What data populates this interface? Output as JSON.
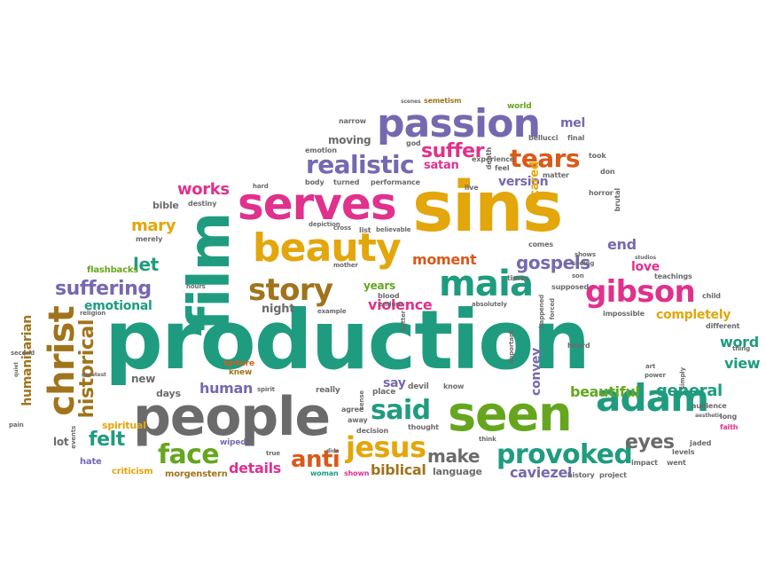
{
  "palette": {
    "teal": "#1f9c7f",
    "gray": "#6b6b6b",
    "purple": "#7668b0",
    "pink": "#e0318c",
    "gold": "#e3a60b",
    "green": "#66a61e",
    "brown": "#a0741c",
    "orange": "#d95a19"
  },
  "words": [
    {
      "text": "production",
      "color": "#1f9c7f"
    },
    {
      "text": "sins",
      "color": "#e3a60b"
    },
    {
      "text": "people",
      "color": "#6b6b6b"
    },
    {
      "text": "seen",
      "color": "#66a61e"
    },
    {
      "text": "film",
      "color": "#1f9c7f"
    },
    {
      "text": "serves",
      "color": "#e0318c"
    },
    {
      "text": "beauty",
      "color": "#e3a60b"
    },
    {
      "text": "passion",
      "color": "#7668b0"
    },
    {
      "text": "christ",
      "color": "#a0741c"
    },
    {
      "text": "adam",
      "color": "#1f9c7f"
    },
    {
      "text": "maia",
      "color": "#1f9c7f"
    },
    {
      "text": "gibson",
      "color": "#e0318c"
    },
    {
      "text": "story",
      "color": "#a0741c"
    },
    {
      "text": "provoked",
      "color": "#1f9c7f"
    },
    {
      "text": "jesus",
      "color": "#e3a60b"
    },
    {
      "text": "said",
      "color": "#1f9c7f"
    },
    {
      "text": "realistic",
      "color": "#7668b0"
    },
    {
      "text": "face",
      "color": "#66a61e"
    },
    {
      "text": "anti",
      "color": "#d95a19"
    },
    {
      "text": "tears",
      "color": "#d95a19"
    },
    {
      "text": "suffering",
      "color": "#7668b0"
    },
    {
      "text": "historical",
      "color": "#a0741c"
    },
    {
      "text": "felt",
      "color": "#1f9c7f"
    },
    {
      "text": "suffer",
      "color": "#e0318c"
    },
    {
      "text": "eyes",
      "color": "#6b6b6b"
    },
    {
      "text": "gospels",
      "color": "#7668b0"
    },
    {
      "text": "let",
      "color": "#1f9c7f"
    },
    {
      "text": "make",
      "color": "#6b6b6b"
    },
    {
      "text": "general",
      "color": "#1f9c7f"
    },
    {
      "text": "beautiful",
      "color": "#66a61e"
    },
    {
      "text": "violence",
      "color": "#e0318c"
    },
    {
      "text": "works",
      "color": "#e0318c"
    },
    {
      "text": "mary",
      "color": "#e3a60b"
    },
    {
      "text": "moment",
      "color": "#d95a19"
    },
    {
      "text": "caviezel",
      "color": "#7668b0"
    },
    {
      "text": "biblical",
      "color": "#a0741c"
    },
    {
      "text": "details",
      "color": "#e0318c"
    },
    {
      "text": "end",
      "color": "#7668b0"
    },
    {
      "text": "human",
      "color": "#7668b0"
    },
    {
      "text": "word",
      "color": "#1f9c7f"
    },
    {
      "text": "view",
      "color": "#1f9c7f"
    },
    {
      "text": "completely",
      "color": "#e3a60b"
    },
    {
      "text": "love",
      "color": "#e0318c"
    },
    {
      "text": "version",
      "color": "#7668b0"
    },
    {
      "text": "emotional",
      "color": "#1f9c7f"
    },
    {
      "text": "humanitarian",
      "color": "#a0741c"
    },
    {
      "text": "scared",
      "color": "#e3a60b"
    },
    {
      "text": "satan",
      "color": "#e0318c"
    },
    {
      "text": "convey",
      "color": "#7668b0"
    },
    {
      "text": "night",
      "color": "#6b6b6b"
    },
    {
      "text": "years",
      "color": "#66a61e"
    },
    {
      "text": "mel",
      "color": "#7668b0"
    },
    {
      "text": "moving",
      "color": "#6b6b6b"
    },
    {
      "text": "say",
      "color": "#7668b0"
    },
    {
      "text": "lot",
      "color": "#6b6b6b"
    },
    {
      "text": "bible",
      "color": "#6b6b6b"
    },
    {
      "text": "new",
      "color": "#6b6b6b"
    },
    {
      "text": "days",
      "color": "#6b6b6b"
    },
    {
      "text": "language",
      "color": "#6b6b6b"
    },
    {
      "text": "flashbacks",
      "color": "#66a61e"
    },
    {
      "text": "spiritual",
      "color": "#e3a60b"
    },
    {
      "text": "hate",
      "color": "#7668b0"
    },
    {
      "text": "criticism",
      "color": "#e3a60b"
    },
    {
      "text": "morgenstern",
      "color": "#a0741c"
    },
    {
      "text": "torture",
      "color": "#d95a19"
    },
    {
      "text": "knew",
      "color": "#a0741c"
    },
    {
      "text": "wiped",
      "color": "#7668b0"
    },
    {
      "text": "really",
      "color": "#6b6b6b"
    },
    {
      "text": "place",
      "color": "#6b6b6b"
    },
    {
      "text": "devil",
      "color": "#6b6b6b"
    },
    {
      "text": "know",
      "color": "#6b6b6b"
    },
    {
      "text": "agree",
      "color": "#6b6b6b"
    },
    {
      "text": "away",
      "color": "#6b6b6b"
    },
    {
      "text": "decision",
      "color": "#6b6b6b"
    },
    {
      "text": "thought",
      "color": "#6b6b6b"
    },
    {
      "text": "shown",
      "color": "#e0318c"
    },
    {
      "text": "woman",
      "color": "#1f9c7f"
    },
    {
      "text": "history",
      "color": "#6b6b6b"
    },
    {
      "text": "project",
      "color": "#6b6b6b"
    },
    {
      "text": "impact",
      "color": "#6b6b6b"
    },
    {
      "text": "went",
      "color": "#6b6b6b"
    },
    {
      "text": "levels",
      "color": "#6b6b6b"
    },
    {
      "text": "jaded",
      "color": "#6b6b6b"
    },
    {
      "text": "audience",
      "color": "#6b6b6b"
    },
    {
      "text": "long",
      "color": "#6b6b6b"
    },
    {
      "text": "faith",
      "color": "#e0318c"
    },
    {
      "text": "child",
      "color": "#6b6b6b"
    },
    {
      "text": "different",
      "color": "#6b6b6b"
    },
    {
      "text": "heard",
      "color": "#6b6b6b"
    },
    {
      "text": "impossible",
      "color": "#6b6b6b"
    },
    {
      "text": "teachings",
      "color": "#6b6b6b"
    },
    {
      "text": "bellucci",
      "color": "#6b6b6b"
    },
    {
      "text": "final",
      "color": "#6b6b6b"
    },
    {
      "text": "took",
      "color": "#6b6b6b"
    },
    {
      "text": "don",
      "color": "#6b6b6b"
    },
    {
      "text": "world",
      "color": "#66a61e"
    },
    {
      "text": "semetism",
      "color": "#a0741c"
    },
    {
      "text": "narrow",
      "color": "#6b6b6b"
    },
    {
      "text": "emotion",
      "color": "#6b6b6b"
    },
    {
      "text": "god",
      "color": "#6b6b6b"
    },
    {
      "text": "body",
      "color": "#6b6b6b"
    },
    {
      "text": "turned",
      "color": "#6b6b6b"
    },
    {
      "text": "performance",
      "color": "#6b6b6b"
    },
    {
      "text": "live",
      "color": "#6b6b6b"
    },
    {
      "text": "horror",
      "color": "#6b6b6b"
    },
    {
      "text": "matter",
      "color": "#6b6b6b"
    },
    {
      "text": "feel",
      "color": "#6b6b6b"
    },
    {
      "text": "death",
      "color": "#6b6b6b"
    },
    {
      "text": "experience",
      "color": "#6b6b6b"
    },
    {
      "text": "brutal",
      "color": "#6b6b6b"
    },
    {
      "text": "destiny",
      "color": "#6b6b6b"
    },
    {
      "text": "merely",
      "color": "#6b6b6b"
    },
    {
      "text": "hard",
      "color": "#6b6b6b"
    },
    {
      "text": "depiction",
      "color": "#6b6b6b"
    },
    {
      "text": "cross",
      "color": "#6b6b6b"
    },
    {
      "text": "list",
      "color": "#6b6b6b"
    },
    {
      "text": "believable",
      "color": "#6b6b6b"
    },
    {
      "text": "mother",
      "color": "#6b6b6b"
    },
    {
      "text": "hours",
      "color": "#6b6b6b"
    },
    {
      "text": "religion",
      "color": "#6b6b6b"
    },
    {
      "text": "blood",
      "color": "#6b6b6b"
    },
    {
      "text": "endure",
      "color": "#6b6b6b"
    },
    {
      "text": "example",
      "color": "#6b6b6b"
    },
    {
      "text": "absolutely",
      "color": "#6b6b6b"
    },
    {
      "text": "comes",
      "color": "#6b6b6b"
    },
    {
      "text": "times",
      "color": "#6b6b6b"
    },
    {
      "text": "shows",
      "color": "#6b6b6b"
    },
    {
      "text": "seeing",
      "color": "#6b6b6b"
    },
    {
      "text": "son",
      "color": "#6b6b6b"
    },
    {
      "text": "supposed",
      "color": "#6b6b6b"
    },
    {
      "text": "forced",
      "color": "#6b6b6b"
    },
    {
      "text": "happened",
      "color": "#6b6b6b"
    },
    {
      "text": "important",
      "color": "#6b6b6b"
    },
    {
      "text": "better",
      "color": "#6b6b6b"
    },
    {
      "text": "sense",
      "color": "#6b6b6b"
    },
    {
      "text": "think",
      "color": "#6b6b6b"
    },
    {
      "text": "didn",
      "color": "#6b6b6b"
    },
    {
      "text": "true",
      "color": "#6b6b6b"
    },
    {
      "text": "art",
      "color": "#6b6b6b"
    },
    {
      "text": "power",
      "color": "#6b6b6b"
    },
    {
      "text": "simply",
      "color": "#6b6b6b"
    },
    {
      "text": "thing",
      "color": "#6b6b6b"
    },
    {
      "text": "aesthetic",
      "color": "#6b6b6b"
    },
    {
      "text": "studios",
      "color": "#6b6b6b"
    },
    {
      "text": "second",
      "color": "#6b6b6b"
    },
    {
      "text": "events",
      "color": "#6b6b6b"
    },
    {
      "text": "pain",
      "color": "#6b6b6b"
    },
    {
      "text": "quiet",
      "color": "#6b6b6b"
    },
    {
      "text": "greatest",
      "color": "#6b6b6b"
    },
    {
      "text": "spirit",
      "color": "#6b6b6b"
    },
    {
      "text": "scenes",
      "color": "#6b6b6b"
    }
  ]
}
